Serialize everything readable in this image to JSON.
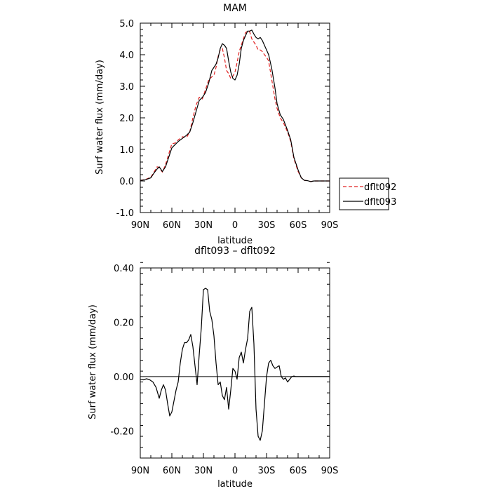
{
  "chart_data": [
    {
      "type": "line",
      "title": "MAM",
      "xlabel": "latitude",
      "ylabel": "Surf water flux (mm/day)",
      "xlim": [
        -90,
        90
      ],
      "ylim": [
        -1.0,
        5.0
      ],
      "xticks": [
        -90,
        -60,
        -30,
        0,
        30,
        60,
        90
      ],
      "xtick_labels": [
        "90N",
        "60N",
        "30N",
        "0",
        "30S",
        "60S",
        "90S"
      ],
      "yticks": [
        -1.0,
        0.0,
        1.0,
        2.0,
        3.0,
        4.0,
        5.0
      ],
      "ytick_labels": [
        "-1.0",
        "0.0",
        "1.0",
        "2.0",
        "3.0",
        "4.0",
        "5.0"
      ],
      "legend_position": "right",
      "series": [
        {
          "name": "dflt092",
          "color": "#e02020",
          "dashed": true,
          "x": [
            -90,
            -85,
            -80,
            -77,
            -74,
            -72,
            -69,
            -66,
            -63,
            -60,
            -57,
            -54,
            -50,
            -46,
            -43,
            -40,
            -37,
            -34,
            -31,
            -28,
            -25,
            -22,
            -20,
            -18,
            -16,
            -14,
            -12,
            -10,
            -8,
            -6,
            -4,
            -2,
            0,
            2,
            4,
            6,
            8,
            10,
            12,
            14,
            16,
            18,
            20,
            22,
            24,
            26,
            28,
            30,
            32,
            35,
            38,
            40,
            43,
            46,
            50,
            53,
            56,
            60,
            63,
            66,
            69,
            72,
            75,
            78,
            81,
            84,
            87,
            90
          ],
          "y": [
            0.02,
            0.05,
            0.12,
            0.28,
            0.45,
            0.42,
            0.28,
            0.52,
            0.85,
            1.18,
            1.2,
            1.3,
            1.4,
            1.38,
            1.55,
            2.0,
            2.4,
            2.65,
            2.6,
            2.9,
            3.2,
            3.3,
            3.35,
            3.6,
            3.95,
            4.15,
            4.2,
            3.9,
            3.5,
            3.4,
            3.25,
            3.32,
            3.45,
            3.75,
            4.1,
            4.3,
            4.5,
            4.7,
            4.75,
            4.72,
            4.5,
            4.4,
            4.3,
            4.15,
            4.15,
            4.1,
            4.0,
            3.92,
            3.8,
            3.2,
            2.6,
            2.3,
            2.0,
            1.85,
            1.55,
            1.25,
            0.7,
            0.3,
            0.1,
            0.02,
            0.01,
            -0.02,
            0.0,
            0.0,
            0.0,
            0.0,
            0.0,
            0.0
          ]
        },
        {
          "name": "dflt093",
          "color": "#000000",
          "dashed": false,
          "x": [
            -90,
            -85,
            -80,
            -77,
            -74,
            -72,
            -69,
            -66,
            -63,
            -60,
            -57,
            -54,
            -50,
            -46,
            -43,
            -40,
            -37,
            -34,
            -31,
            -28,
            -25,
            -22,
            -20,
            -18,
            -16,
            -14,
            -12,
            -10,
            -8,
            -6,
            -4,
            -2,
            0,
            2,
            4,
            6,
            8,
            10,
            12,
            14,
            16,
            18,
            20,
            22,
            24,
            26,
            28,
            30,
            32,
            35,
            38,
            40,
            43,
            46,
            50,
            53,
            56,
            60,
            63,
            66,
            69,
            72,
            75,
            78,
            81,
            84,
            87,
            90
          ],
          "y": [
            0.02,
            0.04,
            0.1,
            0.25,
            0.38,
            0.45,
            0.3,
            0.45,
            0.75,
            1.05,
            1.15,
            1.25,
            1.35,
            1.45,
            1.55,
            1.85,
            2.2,
            2.55,
            2.65,
            2.8,
            3.1,
            3.5,
            3.6,
            3.7,
            3.9,
            4.2,
            4.35,
            4.3,
            4.2,
            3.8,
            3.45,
            3.25,
            3.2,
            3.35,
            3.7,
            4.2,
            4.45,
            4.6,
            4.75,
            4.75,
            4.78,
            4.65,
            4.55,
            4.5,
            4.55,
            4.45,
            4.3,
            4.15,
            4.0,
            3.55,
            2.95,
            2.45,
            2.1,
            1.95,
            1.6,
            1.3,
            0.75,
            0.35,
            0.1,
            0.02,
            0.01,
            -0.02,
            0.0,
            0.0,
            0.0,
            0.0,
            0.0,
            0.0
          ]
        }
      ]
    },
    {
      "type": "line",
      "title": "dflt093 – dflt092",
      "xlabel": "latitude",
      "ylabel": "Surf water flux (mm/day)",
      "xlim": [
        -90,
        90
      ],
      "ylim": [
        -0.3,
        0.4
      ],
      "xticks": [
        -90,
        -60,
        -30,
        0,
        30,
        60,
        90
      ],
      "xtick_labels": [
        "90N",
        "60N",
        "30N",
        "0",
        "30S",
        "60S",
        "90S"
      ],
      "yticks": [
        -0.2,
        0.0,
        0.2,
        0.4
      ],
      "ytick_labels": [
        "-0.20",
        "0.00",
        "0.20",
        "0.40"
      ],
      "series": [
        {
          "color": "#000000",
          "dashed": false,
          "x": [
            -90,
            -87,
            -84,
            -81,
            -78,
            -75,
            -72,
            -70,
            -68,
            -66,
            -64,
            -62,
            -60,
            -58,
            -56,
            -54,
            -52,
            -50,
            -48,
            -46,
            -44,
            -42,
            -40,
            -38,
            -36,
            -34,
            -32,
            -30,
            -28,
            -26,
            -24,
            -22,
            -20,
            -18,
            -16,
            -14,
            -12,
            -10,
            -8,
            -6,
            -4,
            -2,
            0,
            2,
            4,
            6,
            8,
            10,
            12,
            14,
            16,
            18,
            20,
            22,
            24,
            26,
            28,
            30,
            32,
            34,
            36,
            38,
            40,
            42,
            44,
            46,
            48,
            50,
            52,
            54,
            56,
            58,
            60,
            62,
            64,
            66,
            68,
            70,
            72,
            74,
            76,
            78,
            80,
            84,
            88,
            90
          ],
          "y": [
            -0.01,
            -0.012,
            -0.008,
            -0.012,
            -0.02,
            -0.04,
            -0.08,
            -0.05,
            -0.03,
            -0.05,
            -0.1,
            -0.145,
            -0.13,
            -0.09,
            -0.05,
            -0.02,
            0.05,
            0.1,
            0.125,
            0.125,
            0.135,
            0.155,
            0.11,
            0.04,
            -0.03,
            0.08,
            0.18,
            0.32,
            0.325,
            0.32,
            0.24,
            0.21,
            0.15,
            0.05,
            -0.03,
            -0.02,
            -0.07,
            -0.085,
            -0.04,
            -0.12,
            -0.05,
            0.03,
            0.02,
            -0.01,
            0.07,
            0.09,
            0.05,
            0.1,
            0.14,
            0.24,
            0.255,
            0.12,
            -0.12,
            -0.22,
            -0.235,
            -0.2,
            -0.1,
            0.0,
            0.05,
            0.06,
            0.04,
            0.03,
            0.035,
            0.04,
            0.0,
            -0.01,
            -0.005,
            -0.02,
            -0.01,
            0.0,
            0.002,
            0.0,
            0.0,
            0.0,
            0.0,
            0.0,
            0.0,
            0.0,
            0.0,
            0.0,
            0.0,
            0.0,
            0.0,
            0.0,
            0.0,
            0.0
          ]
        }
      ]
    }
  ]
}
